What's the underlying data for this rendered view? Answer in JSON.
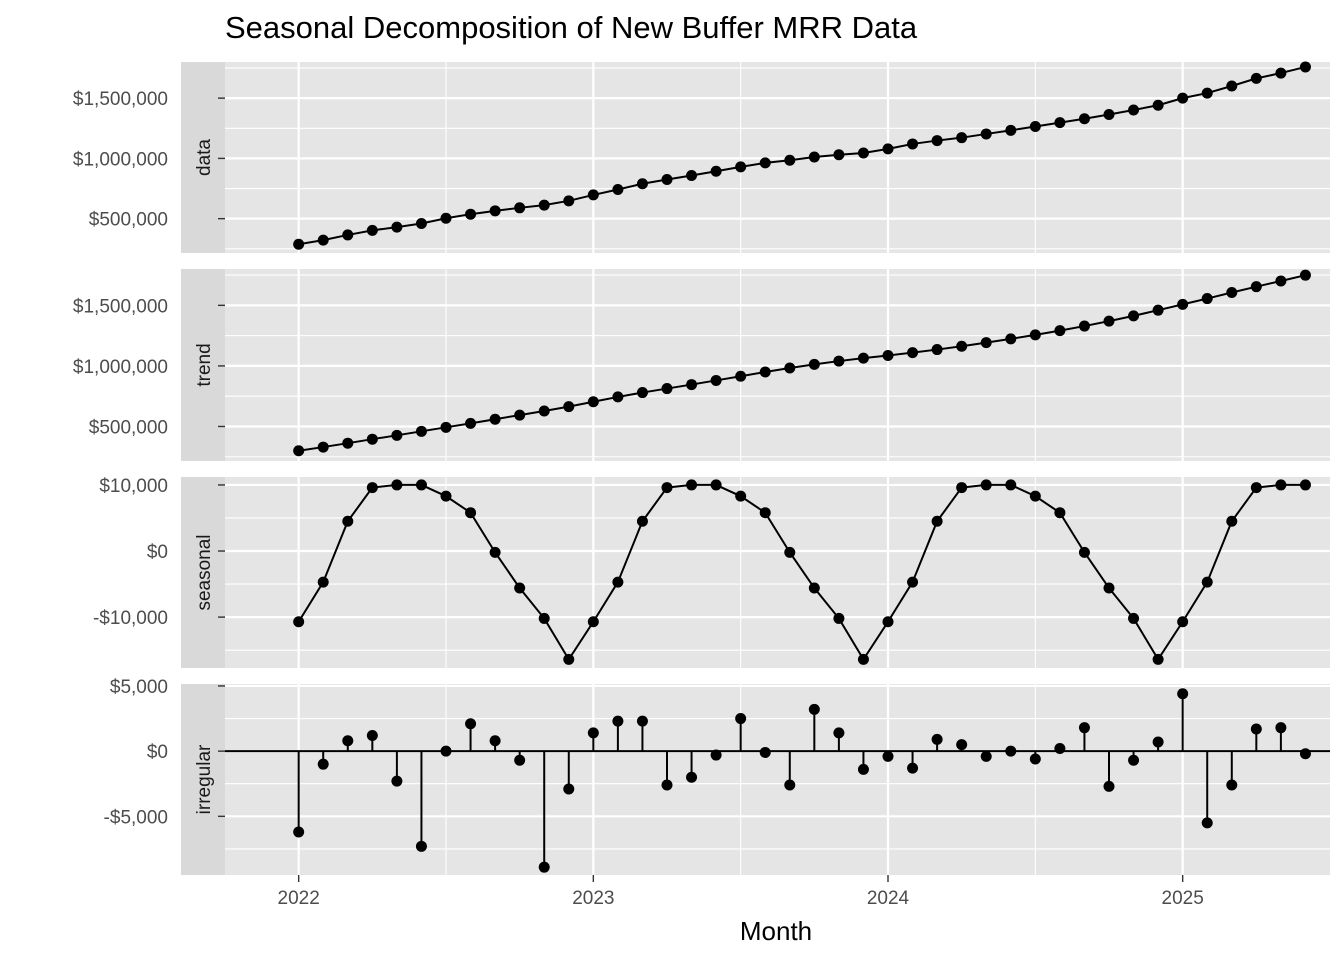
{
  "chart_data": {
    "type": "line",
    "title": "Seasonal Decomposition of New Buffer MRR Data",
    "xlabel": "Month",
    "x_start": "2022-01",
    "x_end": "2025-06",
    "x_ticks": [
      "2022",
      "2023",
      "2024",
      "2025"
    ],
    "x_range": [
      "2021-10",
      "2025-07"
    ],
    "grid": true,
    "background": "#e5e5e5",
    "strip_color": "#d9d9d9",
    "point_color": "#000000",
    "panels": [
      {
        "name": "data",
        "label": "data",
        "style": "line-points",
        "ylim": [
          215000,
          1800000
        ],
        "ticks": [
          {
            "value": 500000,
            "label": "$500,000"
          },
          {
            "value": 1000000,
            "label": "$1,000,000"
          },
          {
            "value": 1500000,
            "label": "$1,500,000"
          }
        ],
        "values": [
          288000,
          322000,
          365000,
          403000,
          430000,
          460000,
          503000,
          537000,
          565000,
          590000,
          612000,
          648000,
          697000,
          742000,
          790000,
          825000,
          858000,
          893000,
          930000,
          963000,
          985000,
          1012000,
          1030000,
          1045000,
          1079000,
          1120000,
          1148000,
          1172000,
          1203000,
          1233000,
          1265000,
          1297000,
          1329000,
          1364000,
          1402000,
          1441000,
          1500000,
          1542000,
          1601000,
          1664000,
          1708000,
          1759000
        ]
      },
      {
        "name": "trend",
        "label": "trend",
        "style": "line-points",
        "ylim": [
          215000,
          1800000
        ],
        "ticks": [
          {
            "value": 500000,
            "label": "$500,000"
          },
          {
            "value": 1000000,
            "label": "$1,000,000"
          },
          {
            "value": 1500000,
            "label": "$1,500,000"
          }
        ],
        "values": [
          300000,
          330000,
          362000,
          395000,
          427000,
          460000,
          493000,
          526000,
          560000,
          594000,
          628000,
          664000,
          704000,
          744000,
          780000,
          813000,
          846000,
          880000,
          915000,
          950000,
          983000,
          1013000,
          1040000,
          1064000,
          1086000,
          1110000,
          1135000,
          1162000,
          1192000,
          1223000,
          1256000,
          1291000,
          1329000,
          1370000,
          1413000,
          1460000,
          1508000,
          1556000,
          1606000,
          1654000,
          1701000,
          1749000
        ]
      },
      {
        "name": "seasonal",
        "label": "seasonal",
        "style": "line-points",
        "ylim": [
          -17700,
          11200
        ],
        "ticks": [
          {
            "value": -10000,
            "label": "-$10,000"
          },
          {
            "value": 0,
            "label": "$0"
          },
          {
            "value": 10000,
            "label": "$10,000"
          }
        ],
        "values": [
          -10700,
          -4700,
          4500,
          9600,
          10000,
          10000,
          8300,
          5800,
          -200,
          -5600,
          -10200,
          -16400,
          -10700,
          -4700,
          4500,
          9600,
          10000,
          10000,
          8300,
          5800,
          -200,
          -5600,
          -10200,
          -16400,
          -10700,
          -4700,
          4500,
          9600,
          10000,
          10000,
          8300,
          5800,
          -200,
          -5600,
          -10200,
          -16400,
          -10700,
          -4700,
          4500,
          9600,
          10000,
          10000
        ]
      },
      {
        "name": "irregular",
        "label": "irregular",
        "style": "stem",
        "ylim": [
          -9500,
          5150
        ],
        "ticks": [
          {
            "value": -5000,
            "label": "-$5,000"
          },
          {
            "value": 0,
            "label": "$0"
          },
          {
            "value": 5000,
            "label": "$5,000"
          }
        ],
        "values": [
          -6200,
          -1000,
          800,
          1200,
          -2300,
          -7300,
          0,
          2100,
          800,
          -700,
          -8900,
          -2900,
          1400,
          2300,
          2300,
          -2600,
          -2000,
          -300,
          2500,
          -100,
          -2600,
          3200,
          1400,
          -1400,
          -400,
          -1300,
          900,
          500,
          -400,
          0,
          -600,
          200,
          1800,
          -2700,
          -700,
          700,
          4400,
          -5500,
          -2600,
          1700,
          1800,
          -200
        ]
      }
    ]
  }
}
